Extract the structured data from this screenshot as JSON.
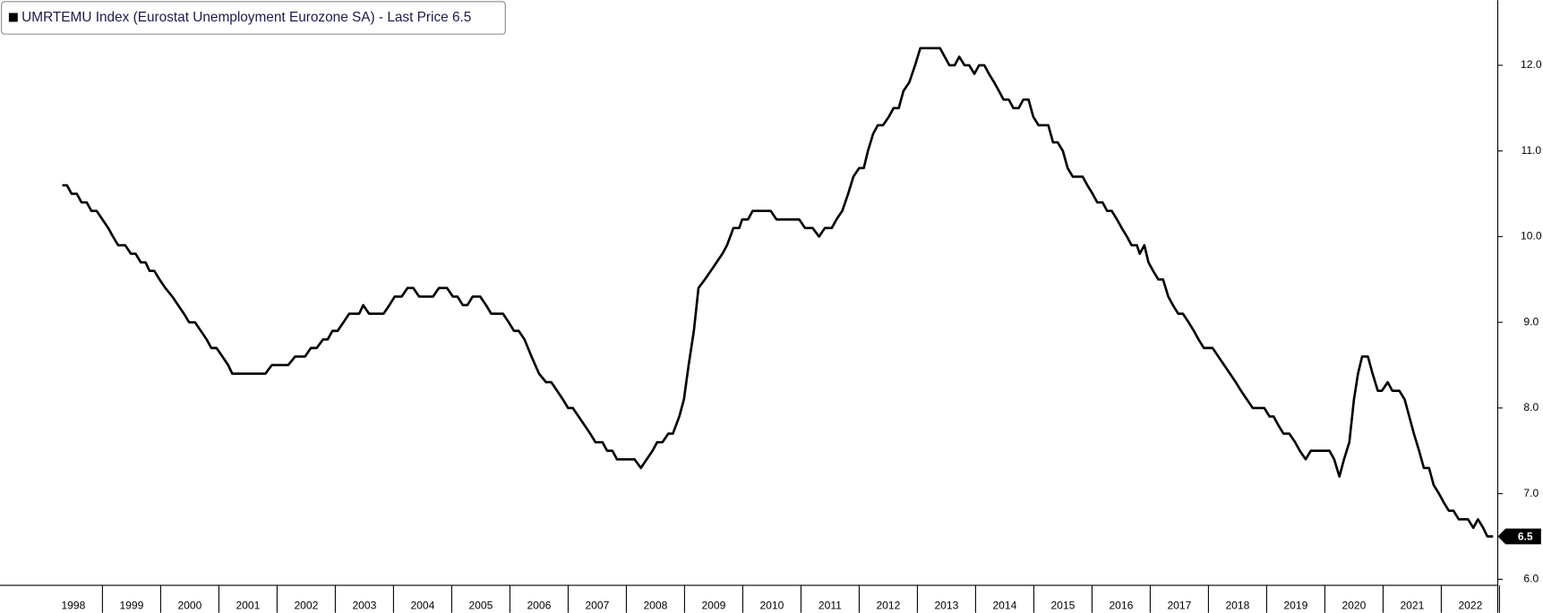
{
  "chart_data": {
    "type": "line",
    "series": [
      {
        "name": "UMRTEMU Index (Eurostat Unemployment Eurozone SA) - Last Price 6.5",
        "color": "#000000",
        "x": [
          1998.31,
          1998.39,
          1998.47,
          1998.56,
          1998.64,
          1998.73,
          1998.81,
          1998.9,
          1999.0,
          1999.1,
          1999.18,
          1999.27,
          1999.39,
          1999.49,
          1999.57,
          1999.66,
          1999.74,
          1999.81,
          1999.89,
          1999.98,
          2000.08,
          2000.2,
          2000.3,
          2000.4,
          2000.49,
          2000.59,
          2000.69,
          2000.79,
          2000.87,
          2000.96,
          2001.06,
          2001.16,
          2001.23,
          2001.8,
          2001.91,
          2002.19,
          2002.31,
          2002.48,
          2002.58,
          2002.68,
          2002.79,
          2002.87,
          2002.95,
          2003.04,
          2003.14,
          2003.24,
          2003.41,
          2003.48,
          2003.58,
          2003.83,
          2003.93,
          2004.02,
          2004.14,
          2004.24,
          2004.34,
          2004.44,
          2004.68,
          2004.78,
          2004.92,
          2005.02,
          2005.1,
          2005.19,
          2005.27,
          2005.36,
          2005.49,
          2005.59,
          2005.68,
          2005.88,
          2005.98,
          2006.07,
          2006.15,
          2006.25,
          2006.37,
          2006.5,
          2006.62,
          2006.71,
          2006.81,
          2006.91,
          2007.0,
          2007.08,
          2007.18,
          2007.28,
          2007.38,
          2007.47,
          2007.59,
          2007.67,
          2007.76,
          2007.84,
          2008.14,
          2008.25,
          2008.35,
          2008.45,
          2008.53,
          2008.62,
          2008.72,
          2008.8,
          2008.91,
          2008.99,
          2009.07,
          2009.16,
          2009.24,
          2009.35,
          2009.45,
          2009.55,
          2009.65,
          2009.73,
          2009.84,
          2009.94,
          2009.99,
          2010.09,
          2010.17,
          2010.48,
          2010.58,
          2010.97,
          2011.07,
          2011.2,
          2011.31,
          2011.41,
          2011.53,
          2011.61,
          2011.71,
          2011.81,
          2011.9,
          2012.0,
          2012.08,
          2012.15,
          2012.24,
          2012.32,
          2012.41,
          2012.51,
          2012.59,
          2012.68,
          2012.76,
          2012.86,
          2012.96,
          2013.05,
          2013.39,
          2013.47,
          2013.55,
          2013.64,
          2013.72,
          2013.81,
          2013.89,
          2013.98,
          2014.06,
          2014.15,
          2014.23,
          2014.32,
          2014.4,
          2014.48,
          2014.57,
          2014.65,
          2014.74,
          2014.82,
          2014.91,
          2014.99,
          2015.08,
          2015.25,
          2015.33,
          2015.41,
          2015.5,
          2015.58,
          2015.67,
          2015.84,
          2015.92,
          2016.01,
          2016.09,
          2016.18,
          2016.26,
          2016.34,
          2016.43,
          2016.51,
          2016.6,
          2016.68,
          2016.77,
          2016.82,
          2016.9,
          2016.97,
          2017.05,
          2017.14,
          2017.22,
          2017.31,
          2017.39,
          2017.48,
          2017.56,
          2017.66,
          2017.75,
          2017.83,
          2017.92,
          2018.07,
          2018.17,
          2018.27,
          2018.37,
          2018.47,
          2018.56,
          2018.66,
          2018.76,
          2018.96,
          2019.05,
          2019.12,
          2019.2,
          2019.29,
          2019.39,
          2019.49,
          2019.57,
          2019.67,
          2019.76,
          2020.08,
          2020.16,
          2020.25,
          2020.33,
          2020.42,
          2020.5,
          2020.57,
          2020.64,
          2020.74,
          2020.82,
          2020.91,
          2020.98,
          2021.08,
          2021.16,
          2021.28,
          2021.37,
          2021.45,
          2021.53,
          2021.62,
          2021.7,
          2021.79,
          2021.87,
          2021.96,
          2022.04,
          2022.13,
          2022.21,
          2022.3,
          2022.46,
          2022.55,
          2022.63,
          2022.72,
          2022.79,
          2022.89
        ],
        "values": [
          10.6,
          10.6,
          10.5,
          10.5,
          10.4,
          10.4,
          10.3,
          10.3,
          10.2,
          10.1,
          10.0,
          9.9,
          9.9,
          9.8,
          9.8,
          9.7,
          9.7,
          9.6,
          9.6,
          9.5,
          9.4,
          9.3,
          9.2,
          9.1,
          9.0,
          9.0,
          8.9,
          8.8,
          8.7,
          8.7,
          8.6,
          8.5,
          8.4,
          8.4,
          8.5,
          8.5,
          8.6,
          8.6,
          8.7,
          8.7,
          8.8,
          8.8,
          8.9,
          8.9,
          9.0,
          9.1,
          9.1,
          9.2,
          9.1,
          9.1,
          9.2,
          9.3,
          9.3,
          9.4,
          9.4,
          9.3,
          9.3,
          9.4,
          9.4,
          9.3,
          9.3,
          9.2,
          9.2,
          9.3,
          9.3,
          9.2,
          9.1,
          9.1,
          9.0,
          8.9,
          8.9,
          8.8,
          8.6,
          8.4,
          8.3,
          8.3,
          8.2,
          8.1,
          8.0,
          8.0,
          7.9,
          7.8,
          7.7,
          7.6,
          7.6,
          7.5,
          7.5,
          7.4,
          7.4,
          7.3,
          7.4,
          7.5,
          7.6,
          7.6,
          7.7,
          7.7,
          7.9,
          8.1,
          8.5,
          8.9,
          9.4,
          9.5,
          9.6,
          9.7,
          9.8,
          9.9,
          10.1,
          10.1,
          10.2,
          10.2,
          10.3,
          10.3,
          10.2,
          10.2,
          10.1,
          10.1,
          10.0,
          10.1,
          10.1,
          10.2,
          10.3,
          10.5,
          10.7,
          10.8,
          10.8,
          11.0,
          11.2,
          11.3,
          11.3,
          11.4,
          11.5,
          11.5,
          11.7,
          11.8,
          12.0,
          12.2,
          12.2,
          12.1,
          12.0,
          12.0,
          12.1,
          12.0,
          12.0,
          11.9,
          12.0,
          12.0,
          11.9,
          11.8,
          11.7,
          11.6,
          11.6,
          11.5,
          11.5,
          11.6,
          11.6,
          11.4,
          11.3,
          11.3,
          11.1,
          11.1,
          11.0,
          10.8,
          10.7,
          10.7,
          10.6,
          10.5,
          10.4,
          10.4,
          10.3,
          10.3,
          10.2,
          10.1,
          10.0,
          9.9,
          9.9,
          9.8,
          9.9,
          9.7,
          9.6,
          9.5,
          9.5,
          9.3,
          9.2,
          9.1,
          9.1,
          9.0,
          8.9,
          8.8,
          8.7,
          8.7,
          8.6,
          8.5,
          8.4,
          8.3,
          8.2,
          8.1,
          8.0,
          8.0,
          7.9,
          7.9,
          7.8,
          7.7,
          7.7,
          7.6,
          7.5,
          7.4,
          7.5,
          7.5,
          7.4,
          7.2,
          7.4,
          7.6,
          8.1,
          8.4,
          8.6,
          8.6,
          8.4,
          8.2,
          8.2,
          8.3,
          8.2,
          8.2,
          8.1,
          7.9,
          7.7,
          7.5,
          7.3,
          7.3,
          7.1,
          7.0,
          6.9,
          6.8,
          6.8,
          6.7,
          6.7,
          6.6,
          6.7,
          6.6,
          6.5,
          6.5
        ]
      }
    ],
    "xlim": [
      1997.24,
      2022.97
    ],
    "xticks": [
      {
        "value": 1998.5,
        "label": "1998"
      },
      {
        "value": 1999.5,
        "label": "1999"
      },
      {
        "value": 2000.5,
        "label": "2000"
      },
      {
        "value": 2001.5,
        "label": "2001"
      },
      {
        "value": 2002.5,
        "label": "2002"
      },
      {
        "value": 2003.5,
        "label": "2003"
      },
      {
        "value": 2004.5,
        "label": "2004"
      },
      {
        "value": 2005.5,
        "label": "2005"
      },
      {
        "value": 2006.5,
        "label": "2006"
      },
      {
        "value": 2007.5,
        "label": "2007"
      },
      {
        "value": 2008.5,
        "label": "2008"
      },
      {
        "value": 2009.5,
        "label": "2009"
      },
      {
        "value": 2010.5,
        "label": "2010"
      },
      {
        "value": 2011.5,
        "label": "2011"
      },
      {
        "value": 2012.5,
        "label": "2012"
      },
      {
        "value": 2013.5,
        "label": "2013"
      },
      {
        "value": 2014.5,
        "label": "2014"
      },
      {
        "value": 2015.5,
        "label": "2015"
      },
      {
        "value": 2016.5,
        "label": "2016"
      },
      {
        "value": 2017.5,
        "label": "2017"
      },
      {
        "value": 2018.5,
        "label": "2018"
      },
      {
        "value": 2019.5,
        "label": "2019"
      },
      {
        "value": 2020.5,
        "label": "2020"
      },
      {
        "value": 2021.5,
        "label": "2021"
      },
      {
        "value": 2022.5,
        "label": "2022"
      }
    ],
    "ylim": [
      5.93,
      12.76
    ],
    "yticks": [
      {
        "value": 6,
        "label": "6.0"
      },
      {
        "value": 7,
        "label": "7.0"
      },
      {
        "value": 8,
        "label": "8.0"
      },
      {
        "value": 9,
        "label": "9.0"
      },
      {
        "value": 10,
        "label": "10.0"
      },
      {
        "value": 11,
        "label": "11.0"
      },
      {
        "value": 12,
        "label": "12.0"
      }
    ],
    "y_axis_side": "right",
    "grid": false
  }
}
